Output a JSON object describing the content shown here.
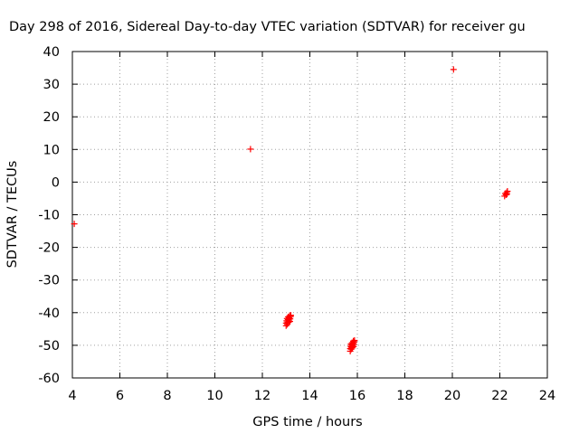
{
  "chart_data": {
    "type": "scatter",
    "title": "Day 298 of 2016, Sidereal Day-to-day VTEC variation (SDTVAR) for receiver gu",
    "xlabel": "GPS time / hours",
    "ylabel": "SDTVAR / TECUs",
    "xlim": [
      4,
      24
    ],
    "ylim": [
      -60,
      40
    ],
    "x_ticks": [
      4,
      6,
      8,
      10,
      12,
      14,
      16,
      18,
      20,
      22,
      24
    ],
    "y_ticks": [
      40,
      30,
      20,
      10,
      0,
      -10,
      -20,
      -30,
      -40,
      -50,
      -60
    ],
    "grid": true,
    "marker": "+",
    "color": "#ff0000",
    "points": [
      [
        4.08,
        -12.8
      ],
      [
        11.5,
        10.1
      ],
      [
        13.0,
        -44.0
      ],
      [
        13.0,
        -43.2
      ],
      [
        13.02,
        -42.5
      ],
      [
        13.04,
        -41.8
      ],
      [
        13.05,
        -43.6
      ],
      [
        13.06,
        -42.9
      ],
      [
        13.08,
        -42.1
      ],
      [
        13.09,
        -41.3
      ],
      [
        13.1,
        -43.0
      ],
      [
        13.12,
        -42.3
      ],
      [
        13.13,
        -41.6
      ],
      [
        13.15,
        -40.9
      ],
      [
        13.16,
        -42.7
      ],
      [
        13.17,
        -41.9
      ],
      [
        13.19,
        -41.2
      ],
      [
        13.2,
        -40.8
      ],
      [
        15.7,
        -51.8
      ],
      [
        15.7,
        -51.0
      ],
      [
        15.72,
        -50.3
      ],
      [
        15.73,
        -49.6
      ],
      [
        15.74,
        -51.2
      ],
      [
        15.75,
        -50.6
      ],
      [
        15.77,
        -49.9
      ],
      [
        15.78,
        -49.2
      ],
      [
        15.79,
        -50.8
      ],
      [
        15.8,
        -50.1
      ],
      [
        15.82,
        -49.4
      ],
      [
        15.83,
        -48.7
      ],
      [
        15.84,
        -50.4
      ],
      [
        15.85,
        -49.7
      ],
      [
        15.87,
        -49.0
      ],
      [
        15.88,
        -48.5
      ],
      [
        20.05,
        34.5
      ],
      [
        22.2,
        -4.3
      ],
      [
        22.23,
        -3.5
      ],
      [
        22.26,
        -3.9
      ],
      [
        22.29,
        -3.2
      ],
      [
        22.32,
        -2.8
      ],
      [
        22.3,
        -3.7
      ]
    ]
  }
}
